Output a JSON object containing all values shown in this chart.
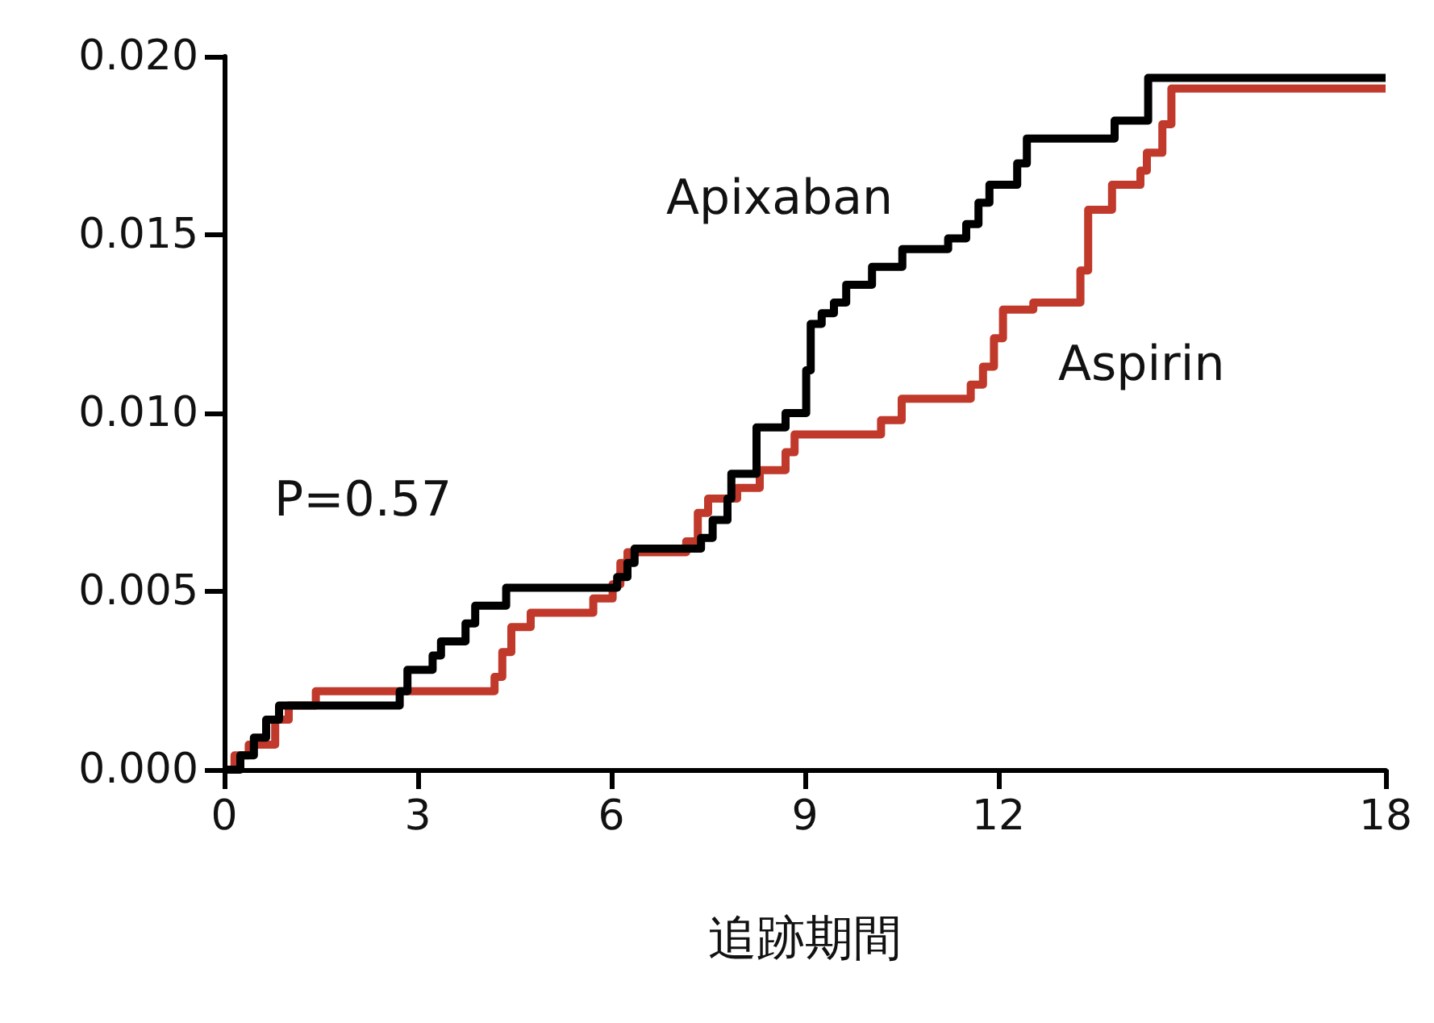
{
  "chart_data": {
    "type": "step",
    "xlabel": "追跡期間",
    "annotations": [
      "P=0.57"
    ],
    "xlim": [
      0,
      18
    ],
    "xticks": [
      0,
      3,
      6,
      9,
      12,
      18
    ],
    "ylim": [
      0,
      0.02
    ],
    "yticks": [
      {
        "value": 0,
        "label": "0.000"
      },
      {
        "value": 0.005,
        "label": "0.005"
      },
      {
        "value": 0.01,
        "label": "0.010"
      },
      {
        "value": 0.015,
        "label": "0.015"
      },
      {
        "value": 0.02,
        "label": "0.020"
      }
    ],
    "grid": false,
    "legend": false,
    "marker": "none",
    "line_style": "solid",
    "series": [
      {
        "name": "Apixaban",
        "color": "#000000",
        "x": [
          0,
          0.25,
          0.46,
          0.65,
          0.85,
          2.72,
          2.84,
          3.23,
          3.36,
          3.74,
          3.89,
          4.37,
          6.09,
          6.25,
          6.36,
          7.39,
          7.57,
          7.8,
          7.86,
          8.25,
          8.7,
          9.02,
          9.09,
          9.26,
          9.45,
          9.64,
          10.04,
          10.51,
          11.22,
          11.5,
          11.69,
          11.86,
          12.29,
          12.44,
          13.8,
          14.32,
          18
        ],
        "values": [
          0,
          0.0004,
          0.0009,
          0.0014,
          0.0018,
          0.0022,
          0.0028,
          0.0032,
          0.0036,
          0.0041,
          0.0046,
          0.0051,
          0.0054,
          0.0058,
          0.0062,
          0.0065,
          0.007,
          0.0076,
          0.0083,
          0.0096,
          0.01,
          0.0112,
          0.0125,
          0.0128,
          0.0131,
          0.0136,
          0.0141,
          0.0146,
          0.0149,
          0.0153,
          0.0159,
          0.0164,
          0.017,
          0.0177,
          0.0182,
          0.0194,
          0.0194
        ]
      },
      {
        "name": "Aspirin",
        "color": "#c0392b",
        "x": [
          0,
          0.16,
          0.38,
          0.79,
          1.0,
          1.42,
          4.19,
          4.31,
          4.45,
          4.75,
          5.72,
          6.02,
          6.14,
          6.25,
          7.16,
          7.34,
          7.5,
          7.95,
          8.3,
          8.7,
          8.84,
          10.18,
          10.5,
          11.57,
          11.76,
          11.93,
          12.07,
          12.54,
          13.27,
          13.39,
          13.76,
          14.2,
          14.3,
          14.54,
          14.68,
          18
        ],
        "values": [
          0,
          0.0004,
          0.0007,
          0.0014,
          0.0018,
          0.0022,
          0.0026,
          0.0033,
          0.004,
          0.0044,
          0.0048,
          0.0052,
          0.0058,
          0.0061,
          0.0064,
          0.0072,
          0.0076,
          0.0079,
          0.0084,
          0.0089,
          0.0094,
          0.0098,
          0.0104,
          0.0108,
          0.0113,
          0.0121,
          0.0129,
          0.0131,
          0.014,
          0.0157,
          0.0164,
          0.0168,
          0.0173,
          0.0181,
          0.0191,
          0.0191
        ]
      }
    ]
  }
}
